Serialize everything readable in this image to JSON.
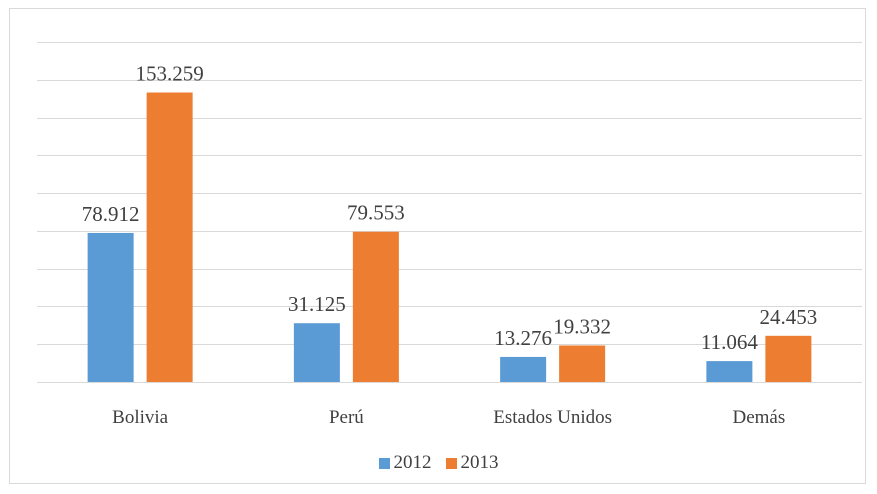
{
  "chart_data": {
    "type": "bar",
    "title": "",
    "xlabel": "",
    "ylabel": "",
    "categories": [
      "Bolivia",
      "Perú",
      "Estados Unidos",
      "Demás"
    ],
    "series": [
      {
        "name": "2012",
        "color": "#5b9bd5",
        "values": [
          78.912,
          31.125,
          13.276,
          11.064
        ],
        "labels": [
          "78.912",
          "31.125",
          "13.276",
          "11.064"
        ]
      },
      {
        "name": "2013",
        "color": "#ed7d31",
        "values": [
          153.259,
          79.553,
          19.332,
          24.453
        ],
        "labels": [
          "153.259",
          "79.553",
          "19.332",
          "24.453"
        ]
      }
    ],
    "ylim": [
      0,
      180
    ],
    "grid": true,
    "legend_position": "bottom"
  }
}
